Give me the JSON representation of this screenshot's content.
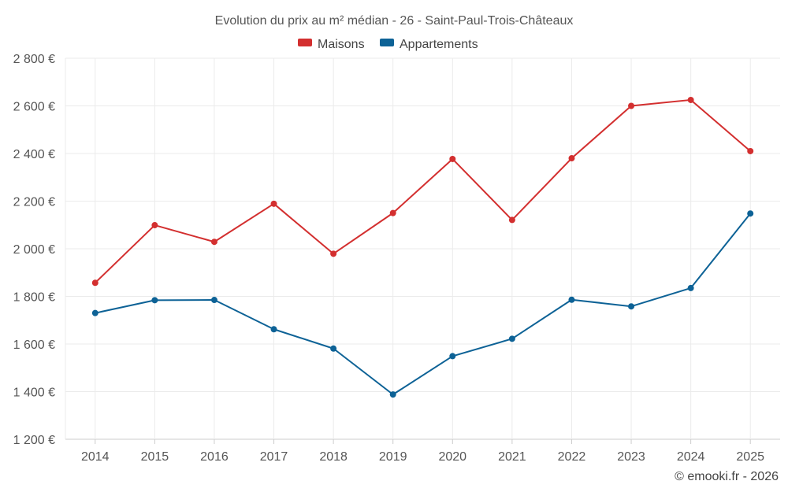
{
  "chart_data": {
    "type": "line",
    "title": "Evolution du prix au m² médian - 26 - Saint-Paul-Trois-Châteaux",
    "categories": [
      "2014",
      "2015",
      "2016",
      "2017",
      "2018",
      "2019",
      "2020",
      "2021",
      "2022",
      "2023",
      "2024",
      "2025"
    ],
    "series": [
      {
        "name": "Maisons",
        "color": "#d32f2f",
        "values": [
          1857,
          2099,
          2029,
          2189,
          1979,
          2150,
          2377,
          2121,
          2380,
          2600,
          2625,
          2410
        ]
      },
      {
        "name": "Appartements",
        "color": "#0d6296",
        "values": [
          1730,
          1784,
          1785,
          1662,
          1581,
          1388,
          1549,
          1622,
          1786,
          1758,
          1835,
          2148
        ]
      }
    ],
    "ylim": [
      1200,
      2800
    ],
    "yticks": [
      1200,
      1400,
      1600,
      1800,
      2000,
      2200,
      2400,
      2600,
      2800
    ],
    "ytick_labels": [
      "1 200 €",
      "1 400 €",
      "1 600 €",
      "1 800 €",
      "2 000 €",
      "2 200 €",
      "2 400 €",
      "2 600 €",
      "2 800 €"
    ],
    "xlabel": "",
    "ylabel": "",
    "legend_position": "top-center",
    "grid": true
  },
  "credit": "© emooki.fr - 2026"
}
